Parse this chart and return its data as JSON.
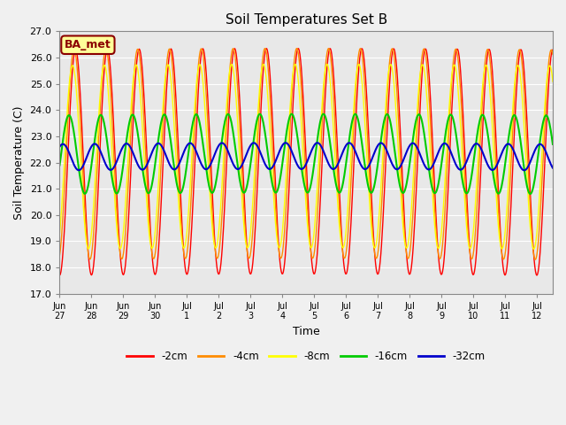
{
  "title": "Soil Temperatures Set B",
  "xlabel": "Time",
  "ylabel": "Soil Temperature (C)",
  "ylim": [
    17.0,
    27.0
  ],
  "yticks": [
    17.0,
    18.0,
    19.0,
    20.0,
    21.0,
    22.0,
    23.0,
    24.0,
    25.0,
    26.0,
    27.0
  ],
  "xtick_labels": [
    "Jun 27",
    "Jun 28",
    "Jun 29",
    "Jun 30",
    "Jul 1",
    "Jul 2",
    "Jul 3",
    "Jul 4",
    "Jul 5",
    "Jul 6",
    "Jul 7",
    "Jul 8",
    "Jul 9",
    "Jul 10",
    "Jul 11",
    "Jul 12"
  ],
  "annotation_text": "BA_met",
  "annotation_color": "#8B0000",
  "annotation_bg": "#FFFF99",
  "bg_color": "#E8E8E8",
  "fig_bg_color": "#F0F0F0",
  "series_colors": [
    "#FF0000",
    "#FF8C00",
    "#FFFF00",
    "#00CC00",
    "#0000CC"
  ],
  "series_labels": [
    "-2cm",
    "-4cm",
    "-8cm",
    "-16cm",
    "-32cm"
  ],
  "series_linewidths": [
    1.0,
    1.0,
    1.0,
    1.5,
    1.5
  ],
  "n_days": 15.5,
  "base_temp": 22.0,
  "amp_2": 4.3,
  "amp_4": 4.0,
  "amp_8": 3.5,
  "amp_16": 1.5,
  "amp_32": 0.5,
  "phase_base": 1.5707963267948966,
  "phase_offsets": [
    0.0,
    -0.3,
    -0.6,
    -1.3,
    -2.5
  ],
  "vertical_offsets": [
    0.0,
    0.3,
    0.2,
    0.3,
    0.2
  ],
  "grid_color": "white",
  "grid_linewidth": 0.8
}
